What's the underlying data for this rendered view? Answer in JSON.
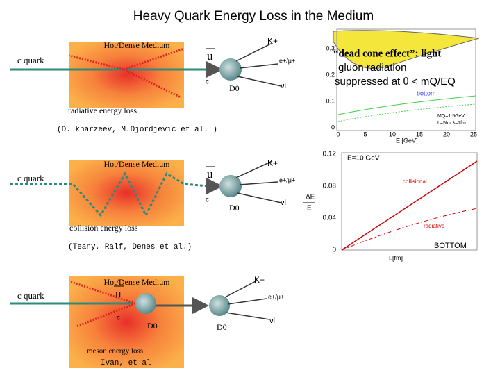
{
  "title": "Heavy Quark Energy Loss in the Medium",
  "panels": [
    {
      "medium": "Hot/Dense Medium",
      "quark": "c quark",
      "ubar": "u",
      "kaon": "K+",
      "lepton": "e+/μ+",
      "charm": "c",
      "meson": "D0",
      "neutrino": "νl",
      "process": "radiative energy loss",
      "refs": "(D. kharzeev, M.Djordjevic et al. )"
    },
    {
      "medium": "Hot/Dense Medium",
      "quark": "c quark",
      "ubar": "u",
      "kaon": "K+",
      "lepton": "e+/μ+",
      "charm": "c",
      "meson": "D0",
      "neutrino": "νl",
      "process": "collision energy loss",
      "refs": "(Teany, Ralf, Denes et al.)"
    },
    {
      "medium": "Hot/Dense Medium",
      "quark": "c quark",
      "ubar": "u",
      "kaon": "K+",
      "lepton": "e+/μ+",
      "charm": "c",
      "meson": "D0",
      "meson2": "D0",
      "neutrino": "νl",
      "process": "meson energy loss",
      "refs": "Ivan, et al"
    }
  ],
  "dead_cone": {
    "line1": "“dead cone effect”: light",
    "line2": "gluon radiation",
    "line3": "suppressed at θ < mQ/EQ"
  },
  "plot1": {
    "yticks": [
      "0.3",
      "0.2",
      "0.1",
      "0"
    ],
    "xticks": [
      "0",
      "5",
      "10",
      "15",
      "20",
      "25"
    ],
    "xlabel": "E [GeV]",
    "curve": "bottom",
    "params1": "MQ=1.5GeV",
    "params2": "L=5fm  λ=1fm"
  },
  "plot2": {
    "yticks": [
      "0.12",
      "0.08",
      "0.04",
      "0"
    ],
    "ylabel_top": "ΔE",
    "ylabel_bottom": "E",
    "xlabel": "L[fm]",
    "note": "E=10 GeV",
    "curve1": "collisional",
    "curve2": "radiative",
    "quark": "BOTTOM"
  }
}
